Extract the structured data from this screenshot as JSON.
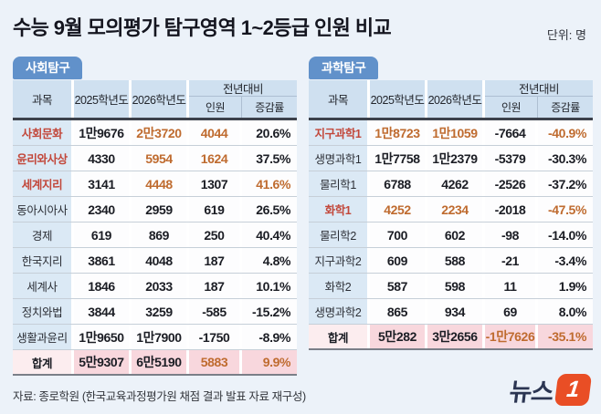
{
  "page": {
    "title": "수능 9월 모의평가 탐구영역 1~2등급 인원 비교",
    "unit_label": "단위: 명",
    "source": "자료: 종로학원 (한국교육과정평가원 채점 결과 발표 자료 재구성)"
  },
  "logo": {
    "wordmark": "뉴스",
    "badge": "1"
  },
  "table_headers": {
    "subject": "과목",
    "y2025": "2025학년도",
    "y2026": "2026학년도",
    "yoy_group": "전년대비",
    "diff": "인원",
    "rate": "증감률"
  },
  "colors": {
    "background": "#ecf2f9",
    "tab_blue": "#6191ca",
    "header_blue": "#cfe0f0",
    "subject_blue": "#dbe9f5",
    "total_pink": "#f8d7dd",
    "highlight_red": "#c2473a",
    "highlight_orange": "#bf6b2f",
    "logo_navy": "#2b3552",
    "logo_orange": "#e94e25"
  },
  "chart_data": [
    {
      "type": "table",
      "title": "사회탐구",
      "columns": [
        "과목",
        "2025학년도",
        "2026학년도",
        "전년대비 인원",
        "전년대비 증감률"
      ],
      "rows": [
        {
          "subject": "사회문화",
          "y2025": "1만9676",
          "y2026": "2만3720",
          "diff": "4044",
          "rate": "20.6%",
          "hl": [
            "subject",
            "y2026",
            "diff"
          ]
        },
        {
          "subject": "윤리와사상",
          "y2025": "4330",
          "y2026": "5954",
          "diff": "1624",
          "rate": "37.5%",
          "hl": [
            "subject",
            "y2026",
            "diff"
          ]
        },
        {
          "subject": "세계지리",
          "y2025": "3141",
          "y2026": "4448",
          "diff": "1307",
          "rate": "41.6%",
          "hl": [
            "subject",
            "y2026",
            "rate"
          ]
        },
        {
          "subject": "동아시아사",
          "y2025": "2340",
          "y2026": "2959",
          "diff": "619",
          "rate": "26.5%",
          "hl": []
        },
        {
          "subject": "경제",
          "y2025": "619",
          "y2026": "869",
          "diff": "250",
          "rate": "40.4%",
          "hl": []
        },
        {
          "subject": "한국지리",
          "y2025": "3861",
          "y2026": "4048",
          "diff": "187",
          "rate": "4.8%",
          "hl": []
        },
        {
          "subject": "세계사",
          "y2025": "1846",
          "y2026": "2033",
          "diff": "187",
          "rate": "10.1%",
          "hl": []
        },
        {
          "subject": "정치와법",
          "y2025": "3844",
          "y2026": "3259",
          "diff": "-585",
          "rate": "-15.2%",
          "hl": []
        },
        {
          "subject": "생활과윤리",
          "y2025": "1만9650",
          "y2026": "1만7900",
          "diff": "-1750",
          "rate": "-8.9%",
          "hl": []
        }
      ],
      "total": {
        "subject": "합계",
        "y2025": "5만9307",
        "y2026": "6만5190",
        "diff": "5883",
        "rate": "9.9%",
        "hl": [
          "diff",
          "rate"
        ]
      }
    },
    {
      "type": "table",
      "title": "과학탐구",
      "columns": [
        "과목",
        "2025학년도",
        "2026학년도",
        "전년대비 인원",
        "전년대비 증감률"
      ],
      "rows": [
        {
          "subject": "지구과학1",
          "y2025": "1만8723",
          "y2026": "1만1059",
          "diff": "-7664",
          "rate": "-40.9%",
          "hl": [
            "subject",
            "y2025",
            "y2026",
            "rate"
          ]
        },
        {
          "subject": "생명과학1",
          "y2025": "1만7758",
          "y2026": "1만2379",
          "diff": "-5379",
          "rate": "-30.3%",
          "hl": []
        },
        {
          "subject": "물리학1",
          "y2025": "6788",
          "y2026": "4262",
          "diff": "-2526",
          "rate": "-37.2%",
          "hl": []
        },
        {
          "subject": "화학1",
          "y2025": "4252",
          "y2026": "2234",
          "diff": "-2018",
          "rate": "-47.5%",
          "hl": [
            "subject",
            "y2025",
            "y2026",
            "rate"
          ]
        },
        {
          "subject": "물리학2",
          "y2025": "700",
          "y2026": "602",
          "diff": "-98",
          "rate": "-14.0%",
          "hl": []
        },
        {
          "subject": "지구과학2",
          "y2025": "609",
          "y2026": "588",
          "diff": "-21",
          "rate": "-3.4%",
          "hl": []
        },
        {
          "subject": "화학2",
          "y2025": "587",
          "y2026": "598",
          "diff": "11",
          "rate": "1.9%",
          "hl": []
        },
        {
          "subject": "생명과학2",
          "y2025": "865",
          "y2026": "934",
          "diff": "69",
          "rate": "8.0%",
          "hl": []
        }
      ],
      "total": {
        "subject": "합계",
        "y2025": "5만282",
        "y2026": "3만2656",
        "diff": "-1만7626",
        "rate": "-35.1%",
        "hl": [
          "diff",
          "rate"
        ]
      }
    }
  ]
}
